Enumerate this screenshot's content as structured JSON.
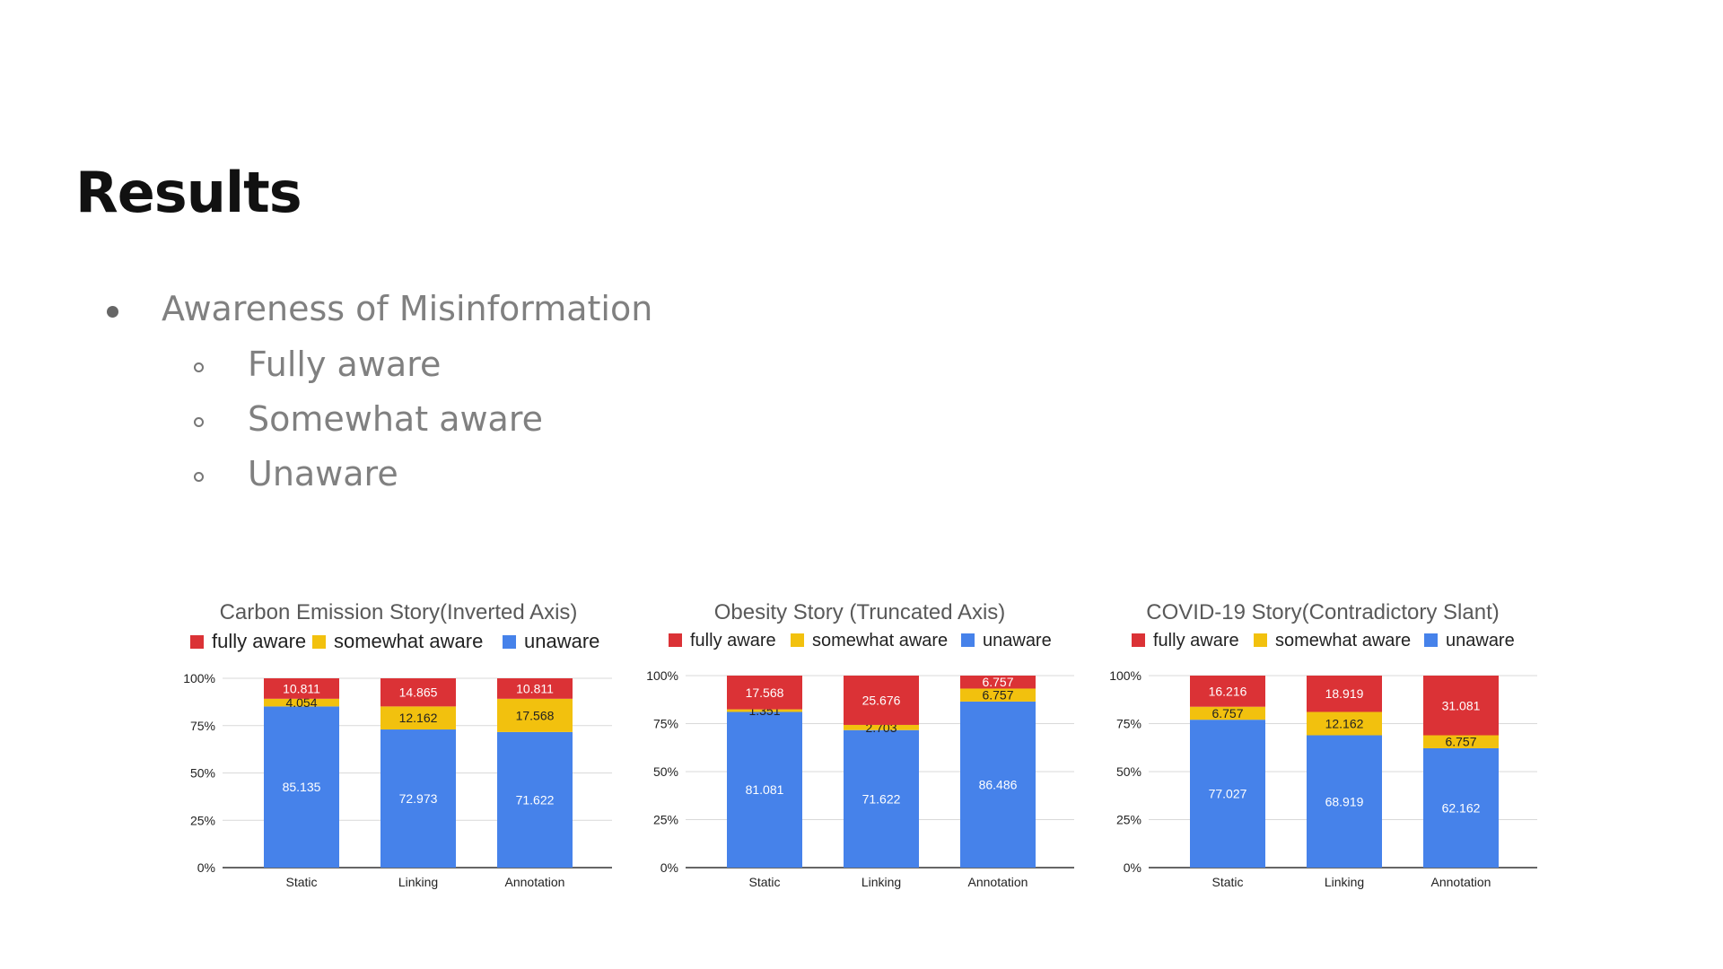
{
  "slide": {
    "title": "Results",
    "bullet": "Awareness of Misinformation",
    "sub_bullets": [
      "Fully aware",
      "Somewhat aware",
      "Unaware"
    ]
  },
  "colors": {
    "fully_aware": "#DB3236",
    "somewhat_aware": "#F2C10E",
    "unaware": "#4682EA",
    "grid": "#D9D9D9",
    "axis": "#333333"
  },
  "chart_data": [
    {
      "type": "bar",
      "stacked": true,
      "title": "Carbon Emission Story(Inverted Axis)",
      "categories": [
        "Static",
        "Linking",
        "Annotation"
      ],
      "y_ticks": [
        "0%",
        "25%",
        "50%",
        "75%",
        "100%"
      ],
      "ylim": [
        0,
        100
      ],
      "legend_position": "top",
      "series": [
        {
          "name": "unaware",
          "values": [
            85.135,
            72.973,
            71.622
          ],
          "labels": [
            "85.135",
            "72.973",
            "71.622"
          ]
        },
        {
          "name": "somewhat aware",
          "values": [
            4.054,
            12.162,
            17.568
          ],
          "labels": [
            "4.054",
            "12.162",
            "17.568"
          ]
        },
        {
          "name": "fully aware",
          "values": [
            10.811,
            14.865,
            10.811
          ],
          "labels": [
            "10.811",
            "14.865",
            "10.811"
          ]
        }
      ]
    },
    {
      "type": "bar",
      "stacked": true,
      "title": "Obesity Story (Truncated Axis)",
      "categories": [
        "Static",
        "Linking",
        "Annotation"
      ],
      "y_ticks": [
        "0%",
        "25%",
        "50%",
        "75%",
        "100%"
      ],
      "ylim": [
        0,
        100
      ],
      "legend_position": "top",
      "series": [
        {
          "name": "unaware",
          "values": [
            81.081,
            71.622,
            86.486
          ],
          "labels": [
            "81.081",
            "71.622",
            "86.486"
          ]
        },
        {
          "name": "somewhat aware",
          "values": [
            1.351,
            2.703,
            6.757
          ],
          "labels": [
            "1.351",
            "2.703",
            "6.757"
          ]
        },
        {
          "name": "fully aware",
          "values": [
            17.568,
            25.676,
            6.757
          ],
          "labels": [
            "17.568",
            "25.676",
            "6.757"
          ]
        }
      ]
    },
    {
      "type": "bar",
      "stacked": true,
      "title": "COVID-19 Story(Contradictory Slant)",
      "categories": [
        "Static",
        "Linking",
        "Annotation"
      ],
      "y_ticks": [
        "0%",
        "25%",
        "50%",
        "75%",
        "100%"
      ],
      "ylim": [
        0,
        100
      ],
      "legend_position": "top",
      "series": [
        {
          "name": "unaware",
          "values": [
            77.027,
            68.919,
            62.162
          ],
          "labels": [
            "77.027",
            "68.919",
            "62.162"
          ]
        },
        {
          "name": "somewhat aware",
          "values": [
            6.757,
            12.162,
            6.757
          ],
          "labels": [
            "6.757",
            "12.162",
            "6.757"
          ]
        },
        {
          "name": "fully aware",
          "values": [
            16.216,
            18.919,
            31.081
          ],
          "labels": [
            "16.216",
            "18.919",
            "31.081"
          ]
        }
      ]
    }
  ]
}
